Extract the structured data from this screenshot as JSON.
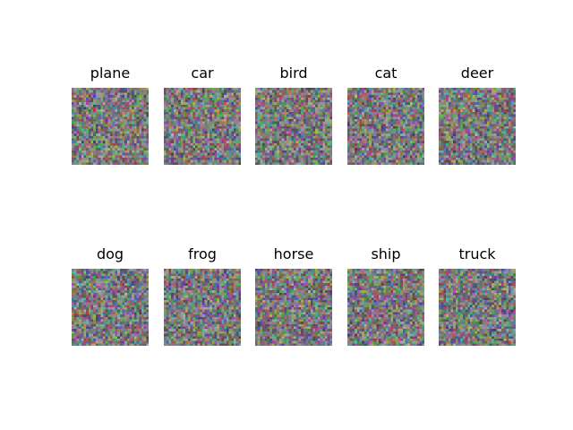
{
  "chart_data": {
    "type": "image-grid",
    "rows": 2,
    "cols": 5,
    "panels": [
      {
        "title": "plane"
      },
      {
        "title": "car"
      },
      {
        "title": "bird"
      },
      {
        "title": "cat"
      },
      {
        "title": "deer"
      },
      {
        "title": "dog"
      },
      {
        "title": "frog"
      },
      {
        "title": "horse"
      },
      {
        "title": "ship"
      },
      {
        "title": "truck"
      }
    ],
    "image_resolution": 32,
    "image_content": "random color noise",
    "palette": {
      "base": "#7a7a7a",
      "green": "#4aa24a",
      "magenta": "#a0509a",
      "blue": "#5a6aa8",
      "olive": "#8a8a50"
    }
  }
}
